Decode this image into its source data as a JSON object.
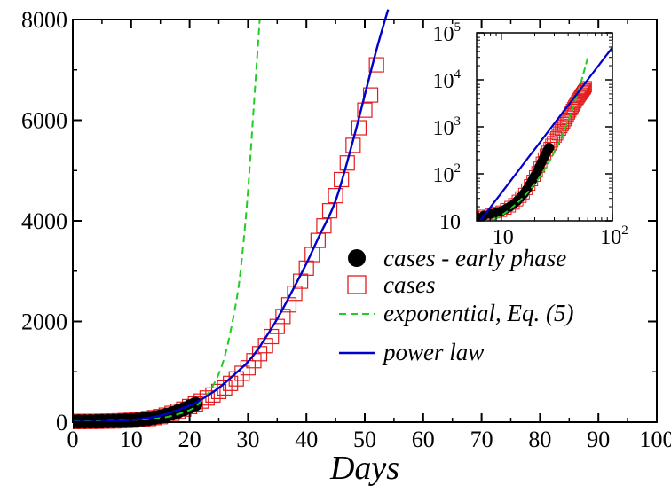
{
  "chart_data": {
    "type": "scatter",
    "xlabel": "Days",
    "ylabel": "",
    "xlim": [
      0,
      100
    ],
    "ylim": [
      0,
      8000
    ],
    "xticks": [
      0,
      10,
      20,
      30,
      40,
      50,
      60,
      70,
      80,
      90,
      100
    ],
    "yticks": [
      0,
      2000,
      4000,
      6000,
      8000
    ],
    "legend_position": "right-center",
    "colors": {
      "early": "#000000",
      "cases": "#e31a1c",
      "exponential": "#22cc22",
      "power": "#0000cc"
    },
    "series": [
      {
        "name": "cases - early phase",
        "marker": "filled-circle",
        "x": [
          0,
          1,
          2,
          3,
          4,
          5,
          6,
          7,
          8,
          9,
          10,
          11,
          12,
          13,
          14,
          15,
          16,
          17,
          18,
          19,
          20,
          21
        ],
        "y": [
          12,
          13,
          14,
          15,
          16,
          18,
          20,
          23,
          27,
          32,
          38,
          47,
          58,
          72,
          90,
          110,
          140,
          175,
          215,
          260,
          310,
          360
        ]
      },
      {
        "name": "cases",
        "marker": "open-square",
        "x": [
          0,
          1,
          2,
          3,
          4,
          5,
          6,
          7,
          8,
          9,
          10,
          11,
          12,
          13,
          14,
          15,
          16,
          17,
          18,
          19,
          20,
          21,
          22,
          23,
          24,
          25,
          26,
          27,
          28,
          29,
          30,
          31,
          32,
          33,
          34,
          35,
          36,
          37,
          38,
          39,
          40,
          41,
          42,
          43,
          44,
          45,
          46,
          47,
          48,
          49,
          50,
          51,
          52
        ],
        "y": [
          12,
          13,
          14,
          15,
          16,
          18,
          20,
          23,
          27,
          32,
          38,
          47,
          58,
          72,
          90,
          110,
          140,
          175,
          215,
          260,
          310,
          360,
          420,
          480,
          540,
          610,
          680,
          770,
          860,
          970,
          1080,
          1220,
          1360,
          1520,
          1700,
          1900,
          2100,
          2330,
          2560,
          2800,
          3060,
          3330,
          3610,
          3900,
          4200,
          4500,
          4820,
          5150,
          5500,
          5850,
          6200,
          6500,
          7100
        ]
      },
      {
        "name": "exponential, Eq. (5)",
        "line": "dashed",
        "x": [
          0,
          4,
          8,
          12,
          16,
          20,
          22,
          24,
          26,
          28,
          29,
          30,
          31,
          32
        ],
        "y": [
          12,
          18,
          30,
          52,
          100,
          240,
          420,
          720,
          1300,
          2400,
          3300,
          4600,
          6300,
          8000
        ]
      },
      {
        "name": "power law",
        "line": "solid",
        "x": [
          0,
          5,
          10,
          15,
          20,
          22,
          25,
          28,
          30,
          32,
          35,
          38,
          40,
          42,
          45,
          48,
          50,
          52,
          54
        ],
        "y": [
          5,
          10,
          40,
          130,
          330,
          450,
          680,
          980,
          1200,
          1500,
          2050,
          2700,
          3150,
          3650,
          4400,
          5600,
          6500,
          7400,
          8200
        ]
      }
    ],
    "inset": {
      "type": "line",
      "xscale": "log",
      "yscale": "log",
      "xlim": [
        6,
        100
      ],
      "ylim": [
        10,
        100000
      ],
      "xticks": [
        {
          "base": "10",
          "exp": ""
        },
        {
          "base": "10",
          "exp": "2"
        }
      ],
      "yticks": [
        {
          "base": "10",
          "exp": ""
        },
        {
          "base": "10",
          "exp": "2"
        },
        {
          "base": "10",
          "exp": "3"
        },
        {
          "base": "10",
          "exp": "4"
        },
        {
          "base": "10",
          "exp": "5"
        }
      ]
    }
  }
}
